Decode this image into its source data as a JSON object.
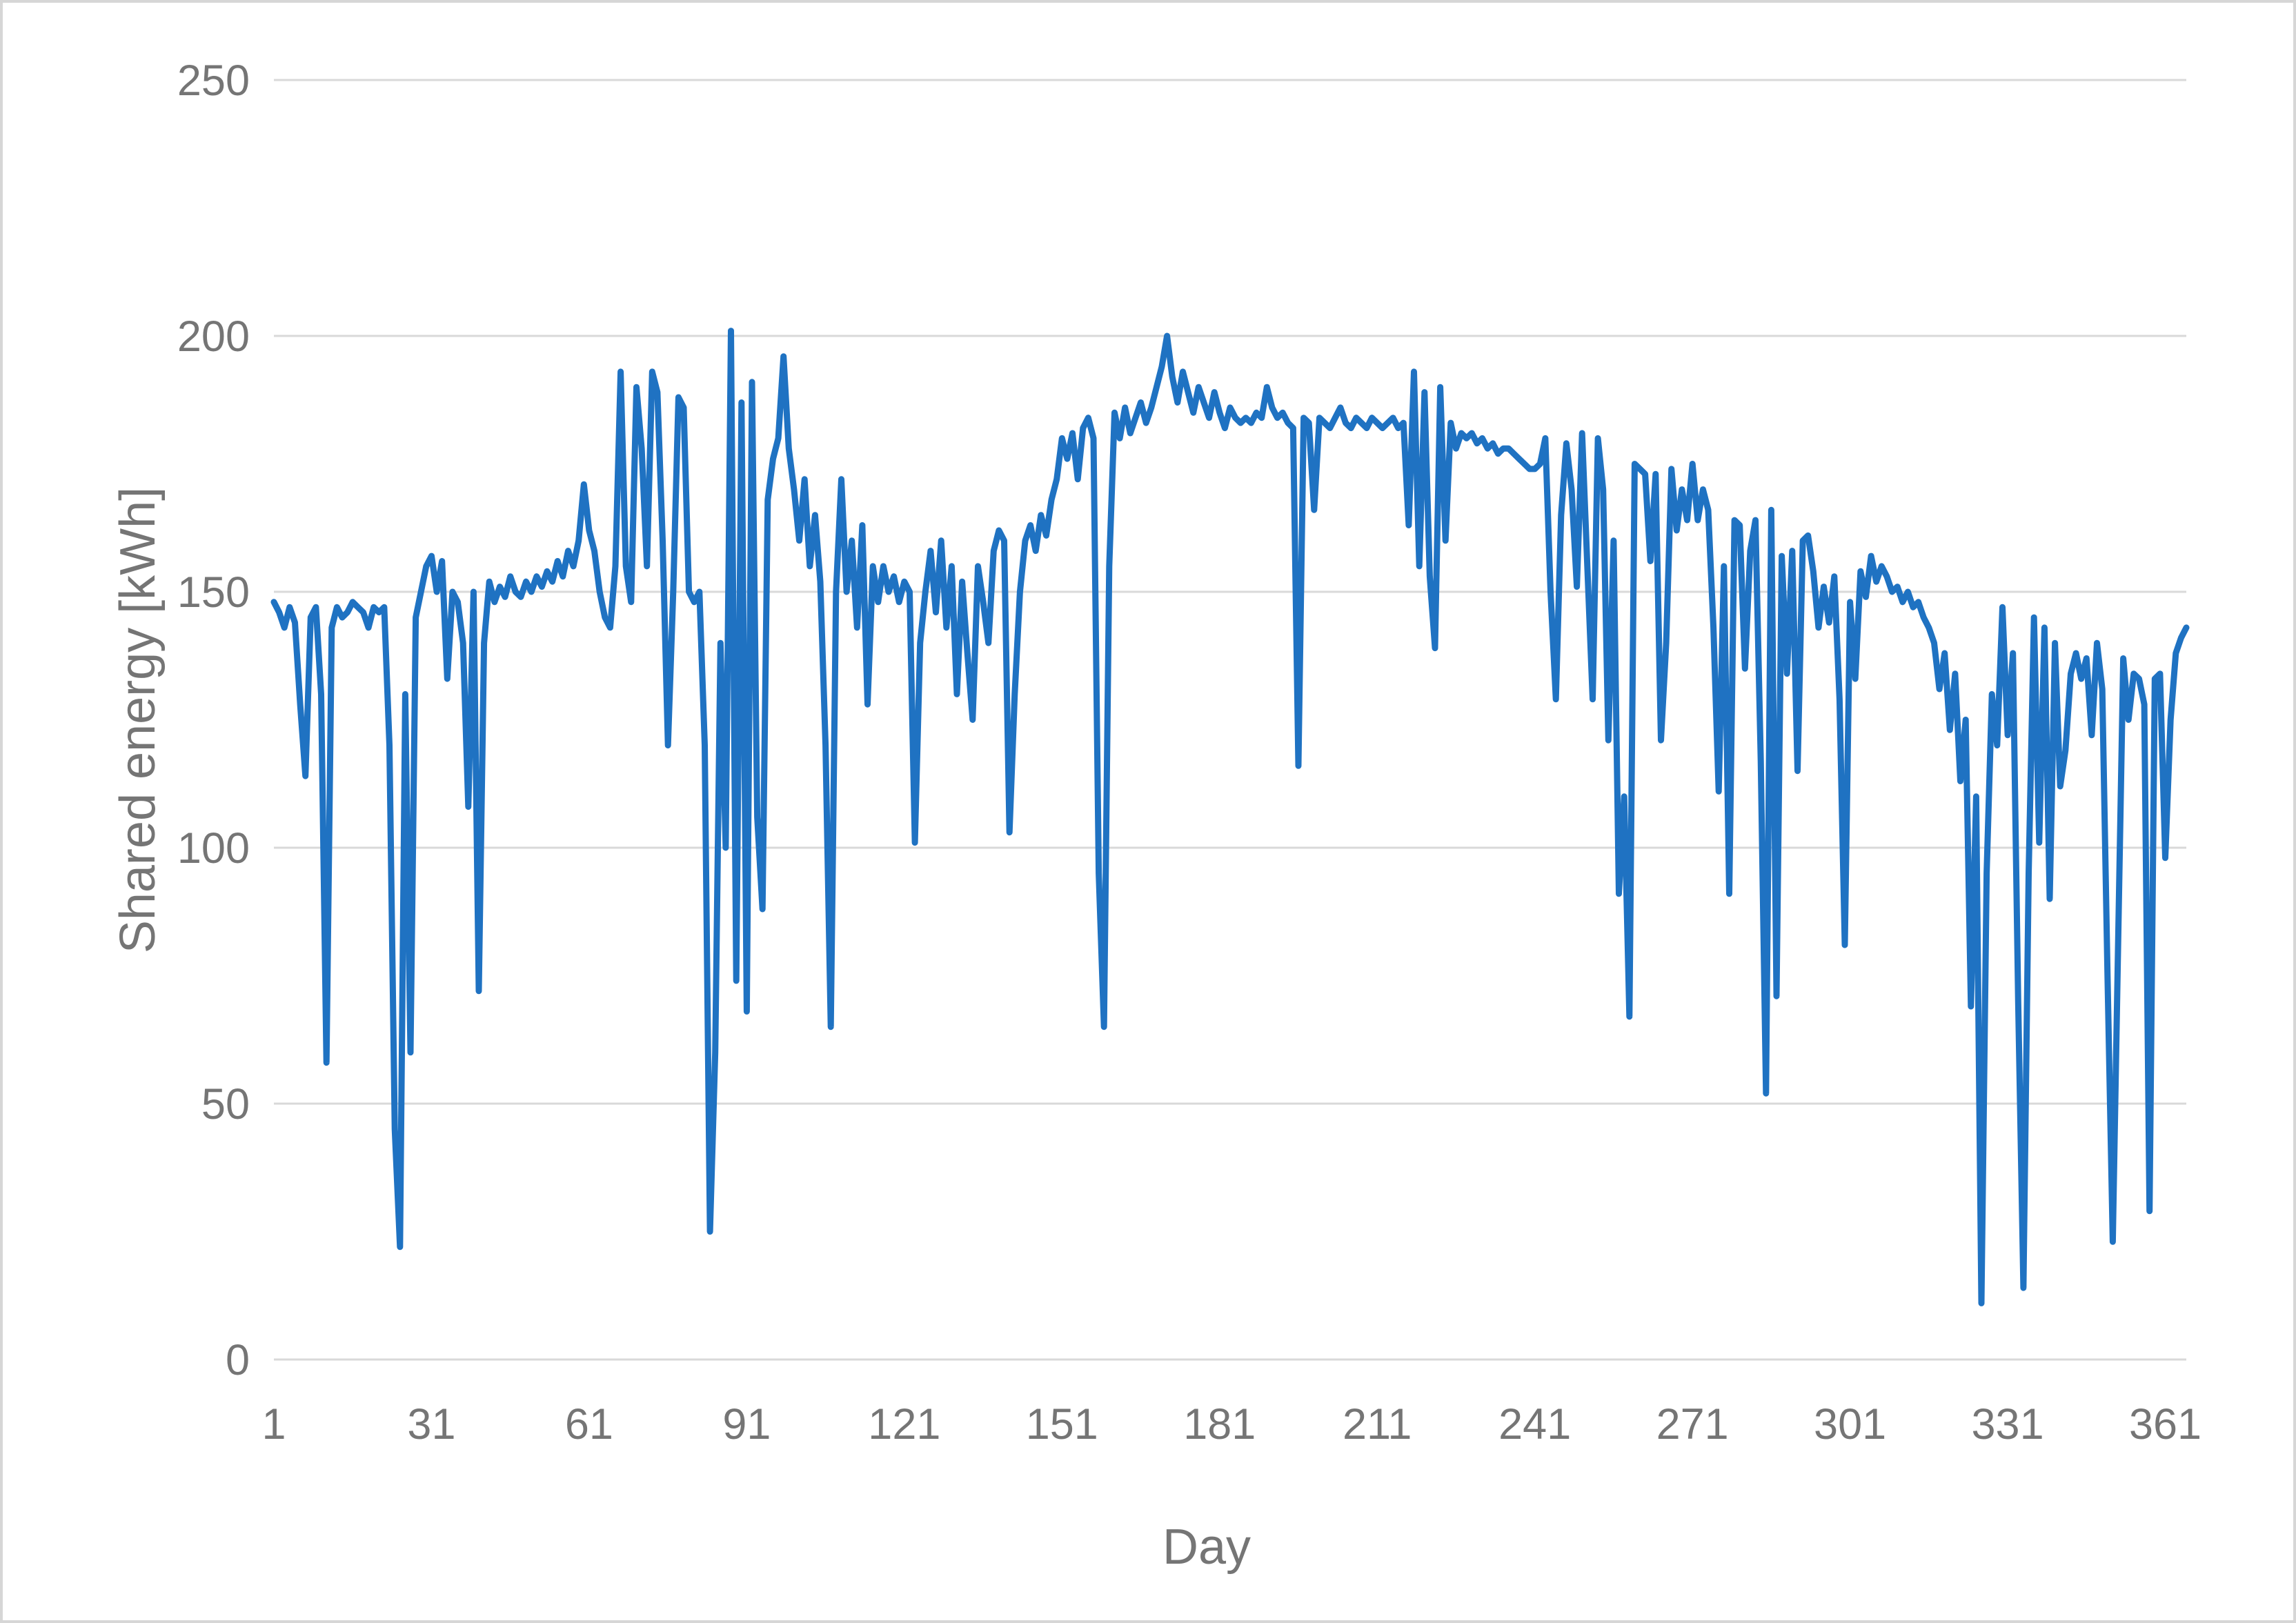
{
  "chart_data": {
    "type": "line",
    "title": "",
    "xlabel": "Day",
    "ylabel": "Shared energy [kWh]",
    "xlim": [
      1,
      365
    ],
    "ylim": [
      0,
      250
    ],
    "grid": true,
    "legend": false,
    "x_start": 1,
    "x_step": 1,
    "xticks": [
      1,
      31,
      61,
      91,
      121,
      151,
      181,
      211,
      241,
      271,
      301,
      331,
      361
    ],
    "yticks": [
      0,
      50,
      100,
      150,
      200,
      250
    ],
    "series_name": "Shared energy",
    "values": [
      148,
      146,
      143,
      147,
      144,
      128,
      114,
      145,
      147,
      130,
      58,
      143,
      147,
      145,
      146,
      148,
      147,
      146,
      143,
      147,
      146,
      147,
      120,
      45,
      22,
      130,
      60,
      145,
      150,
      155,
      157,
      150,
      156,
      133,
      150,
      148,
      140,
      108,
      150,
      72,
      140,
      152,
      148,
      151,
      149,
      153,
      150,
      149,
      152,
      150,
      153,
      151,
      154,
      152,
      156,
      153,
      158,
      155,
      160,
      171,
      162,
      158,
      150,
      145,
      143,
      155,
      193,
      155,
      148,
      190,
      178,
      155,
      193,
      189,
      160,
      120,
      150,
      188,
      186,
      150,
      148,
      150,
      120,
      25,
      60,
      140,
      100,
      201,
      74,
      187,
      68,
      191,
      106,
      88,
      168,
      176,
      180,
      196,
      178,
      170,
      160,
      172,
      155,
      165,
      152,
      120,
      65,
      150,
      172,
      150,
      160,
      143,
      163,
      128,
      155,
      148,
      155,
      150,
      153,
      148,
      152,
      150,
      101,
      140,
      150,
      158,
      146,
      160,
      143,
      155,
      130,
      152,
      138,
      125,
      155,
      148,
      140,
      158,
      162,
      160,
      103,
      130,
      150,
      160,
      163,
      158,
      165,
      161,
      168,
      172,
      180,
      176,
      181,
      172,
      182,
      184,
      180,
      95,
      65,
      155,
      185,
      180,
      186,
      181,
      184,
      187,
      183,
      186,
      190,
      194,
      200,
      192,
      187,
      193,
      189,
      185,
      190,
      187,
      184,
      189,
      185,
      182,
      186,
      184,
      183,
      184,
      183,
      185,
      184,
      190,
      186,
      184,
      185,
      183,
      182,
      116,
      184,
      183,
      166,
      184,
      183,
      182,
      184,
      186,
      183,
      182,
      184,
      183,
      182,
      184,
      183,
      182,
      183,
      184,
      182,
      183,
      163,
      193,
      155,
      189,
      153,
      139,
      190,
      160,
      183,
      178,
      181,
      180,
      181,
      179,
      180,
      178,
      179,
      177,
      178,
      178,
      177,
      176,
      175,
      174,
      174,
      175,
      180,
      150,
      129,
      165,
      179,
      170,
      151,
      181,
      155,
      129,
      180,
      170,
      121,
      160,
      91,
      110,
      67,
      175,
      174,
      173,
      156,
      173,
      121,
      140,
      174,
      162,
      170,
      164,
      175,
      164,
      170,
      166,
      143,
      111,
      155,
      91,
      164,
      163,
      135,
      158,
      164,
      117,
      52,
      166,
      71,
      157,
      134,
      158,
      115,
      160,
      161,
      154,
      143,
      151,
      144,
      153,
      129,
      81,
      148,
      133,
      154,
      149,
      157,
      152,
      155,
      153,
      150,
      151,
      148,
      150,
      147,
      148,
      145,
      143,
      140,
      131,
      138,
      123,
      134,
      113,
      125,
      69,
      110,
      11,
      95,
      130,
      120,
      147,
      122,
      138,
      70,
      14,
      95,
      145,
      101,
      143,
      90,
      140,
      112,
      119,
      134,
      138,
      133,
      137,
      122,
      140,
      131,
      75,
      23,
      80,
      137,
      125,
      134,
      133,
      128,
      29,
      133,
      134,
      98,
      125,
      138,
      141,
      143
    ],
    "colors": {
      "line": "#1F72C2",
      "grid": "#D9D9D9",
      "tick_text": "#757575",
      "axis_title_text": "#757575",
      "background": "#FFFFFF",
      "frame": "#D6D6D6"
    }
  }
}
